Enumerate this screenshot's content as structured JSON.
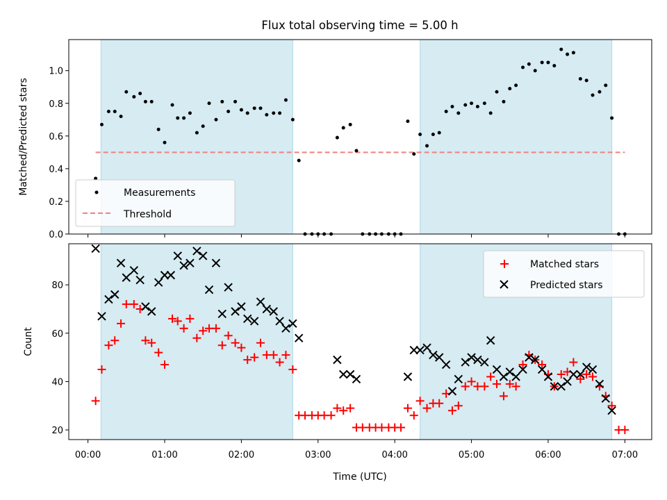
{
  "chart_data": [
    {
      "type": "scatter",
      "title": "Flux total observing time = 5.00 h",
      "xlabel": "",
      "ylabel": "Matched/Predicted stars",
      "xlim": [
        -0.25,
        7.35
      ],
      "ylim": [
        0,
        1.19
      ],
      "yticks": [
        0.0,
        0.2,
        0.4,
        0.6,
        0.8,
        1.0
      ],
      "ytick_labels": [
        "0.0",
        "0.2",
        "0.4",
        "0.6",
        "0.8",
        "1.0"
      ],
      "shaded_spans": [
        [
          0.17,
          2.67
        ],
        [
          4.33,
          6.83
        ]
      ],
      "threshold": {
        "name": "Threshold",
        "y": 0.5,
        "x_range": [
          0.1,
          7.0
        ],
        "color": "#f08080"
      },
      "legend_position": "lower-left",
      "series": [
        {
          "name": "Measurements",
          "color": "#000000",
          "x": [
            0.1,
            0.18,
            0.27,
            0.35,
            0.43,
            0.5,
            0.6,
            0.68,
            0.75,
            0.83,
            0.92,
            1.0,
            1.1,
            1.17,
            1.25,
            1.33,
            1.42,
            1.5,
            1.58,
            1.67,
            1.75,
            1.83,
            1.92,
            2.0,
            2.08,
            2.17,
            2.25,
            2.33,
            2.42,
            2.5,
            2.58,
            2.67,
            2.75,
            2.83,
            2.92,
            3.0,
            3.08,
            3.17,
            3.25,
            3.33,
            3.42,
            3.5,
            3.58,
            3.67,
            3.75,
            3.83,
            3.92,
            4.0,
            4.08,
            4.17,
            4.25,
            4.33,
            4.42,
            4.5,
            4.58,
            4.67,
            4.75,
            4.83,
            4.92,
            5.0,
            5.08,
            5.17,
            5.25,
            5.33,
            5.42,
            5.5,
            5.58,
            5.67,
            5.75,
            5.83,
            5.92,
            6.0,
            6.08,
            6.17,
            6.25,
            6.33,
            6.42,
            6.5,
            6.58,
            6.67,
            6.75,
            6.83,
            6.92,
            7.0
          ],
          "y": [
            0.34,
            0.67,
            0.75,
            0.75,
            0.72,
            0.87,
            0.84,
            0.86,
            0.81,
            0.81,
            0.64,
            0.56,
            0.79,
            0.71,
            0.71,
            0.74,
            0.62,
            0.66,
            0.8,
            0.7,
            0.81,
            0.75,
            0.81,
            0.76,
            0.74,
            0.77,
            0.77,
            0.73,
            0.74,
            0.74,
            0.82,
            0.7,
            0.45,
            0.0,
            0.0,
            0.0,
            0.0,
            0.0,
            0.59,
            0.65,
            0.67,
            0.51,
            0.0,
            0.0,
            0.0,
            0.0,
            0.0,
            0.0,
            0.0,
            0.69,
            0.49,
            0.61,
            0.54,
            0.61,
            0.62,
            0.75,
            0.78,
            0.74,
            0.79,
            0.8,
            0.78,
            0.8,
            0.74,
            0.87,
            0.81,
            0.89,
            0.91,
            1.02,
            1.04,
            1.0,
            1.05,
            1.05,
            1.03,
            1.13,
            1.1,
            1.11,
            0.95,
            0.94,
            0.85,
            0.87,
            0.91,
            0.71,
            0.0,
            0.0
          ]
        }
      ]
    },
    {
      "type": "scatter",
      "title": "",
      "xlabel": "Time (UTC)",
      "ylabel": "Count",
      "xlim": [
        -0.25,
        7.35
      ],
      "ylim": [
        16,
        97
      ],
      "xticks": [
        0,
        1,
        2,
        3,
        4,
        5,
        6,
        7
      ],
      "xtick_labels": [
        "00:00",
        "01:00",
        "02:00",
        "03:00",
        "04:00",
        "05:00",
        "06:00",
        "07:00"
      ],
      "yticks": [
        20,
        40,
        60,
        80
      ],
      "ytick_labels": [
        "20",
        "40",
        "60",
        "80"
      ],
      "shaded_spans": [
        [
          0.17,
          2.67
        ],
        [
          4.33,
          6.83
        ]
      ],
      "legend_position": "upper-right",
      "series": [
        {
          "name": "Matched stars",
          "color": "#ff0000",
          "marker": "+",
          "x": [
            0.1,
            0.18,
            0.27,
            0.35,
            0.43,
            0.5,
            0.6,
            0.68,
            0.75,
            0.83,
            0.92,
            1.0,
            1.1,
            1.17,
            1.25,
            1.33,
            1.42,
            1.5,
            1.58,
            1.67,
            1.75,
            1.83,
            1.92,
            2.0,
            2.08,
            2.17,
            2.25,
            2.33,
            2.42,
            2.5,
            2.58,
            2.67,
            2.75,
            2.83,
            2.92,
            3.0,
            3.08,
            3.17,
            3.25,
            3.33,
            3.42,
            3.5,
            3.58,
            3.67,
            3.75,
            3.83,
            3.92,
            4.0,
            4.08,
            4.17,
            4.25,
            4.33,
            4.42,
            4.5,
            4.58,
            4.67,
            4.75,
            4.83,
            4.92,
            5.0,
            5.08,
            5.17,
            5.25,
            5.33,
            5.42,
            5.5,
            5.58,
            5.67,
            5.75,
            5.83,
            5.92,
            6.0,
            6.08,
            6.17,
            6.25,
            6.33,
            6.42,
            6.5,
            6.58,
            6.67,
            6.75,
            6.83,
            6.92,
            7.0
          ],
          "y": [
            32,
            45,
            55,
            57,
            64,
            72,
            72,
            70,
            57,
            56,
            52,
            47,
            66,
            65,
            62,
            66,
            58,
            61,
            62,
            62,
            55,
            59,
            56,
            54,
            49,
            50,
            56,
            51,
            51,
            48,
            51,
            45,
            26,
            26,
            26,
            26,
            26,
            26,
            29,
            28,
            29,
            21,
            21,
            21,
            21,
            21,
            21,
            21,
            21,
            29,
            26,
            32,
            29,
            31,
            31,
            35,
            28,
            30,
            38,
            40,
            38,
            38,
            42,
            39,
            34,
            39,
            38,
            47,
            51,
            49,
            47,
            43,
            38,
            43,
            44,
            48,
            41,
            43,
            42,
            38,
            34,
            30,
            20,
            20
          ]
        },
        {
          "name": "Predicted stars",
          "color": "#000000",
          "marker": "x",
          "x": [
            0.1,
            0.18,
            0.27,
            0.35,
            0.43,
            0.5,
            0.6,
            0.68,
            0.75,
            0.83,
            0.92,
            1.0,
            1.08,
            1.17,
            1.25,
            1.33,
            1.42,
            1.5,
            1.58,
            1.67,
            1.75,
            1.83,
            1.92,
            2.0,
            2.08,
            2.17,
            2.25,
            2.33,
            2.42,
            2.5,
            2.58,
            2.67,
            2.75,
            3.25,
            3.33,
            3.42,
            3.5,
            4.17,
            4.25,
            4.33,
            4.42,
            4.5,
            4.58,
            4.67,
            4.75,
            4.83,
            4.92,
            5.0,
            5.08,
            5.17,
            5.25,
            5.33,
            5.42,
            5.5,
            5.58,
            5.67,
            5.75,
            5.83,
            5.92,
            6.0,
            6.08,
            6.17,
            6.25,
            6.33,
            6.42,
            6.5,
            6.58,
            6.67,
            6.75,
            6.83
          ],
          "y": [
            95,
            67,
            74,
            76,
            89,
            83,
            86,
            82,
            71,
            69,
            81,
            84,
            84,
            92,
            88,
            89,
            94,
            92,
            78,
            89,
            68,
            79,
            69,
            71,
            66,
            65,
            73,
            70,
            69,
            65,
            62,
            64,
            58,
            49,
            43,
            43,
            41,
            42,
            53,
            53,
            54,
            51,
            50,
            47,
            36,
            41,
            48,
            50,
            49,
            48,
            57,
            45,
            42,
            44,
            42,
            45,
            50,
            49,
            45,
            42,
            38,
            38,
            40,
            43,
            43,
            46,
            45,
            39,
            33,
            28
          ]
        }
      ]
    }
  ]
}
